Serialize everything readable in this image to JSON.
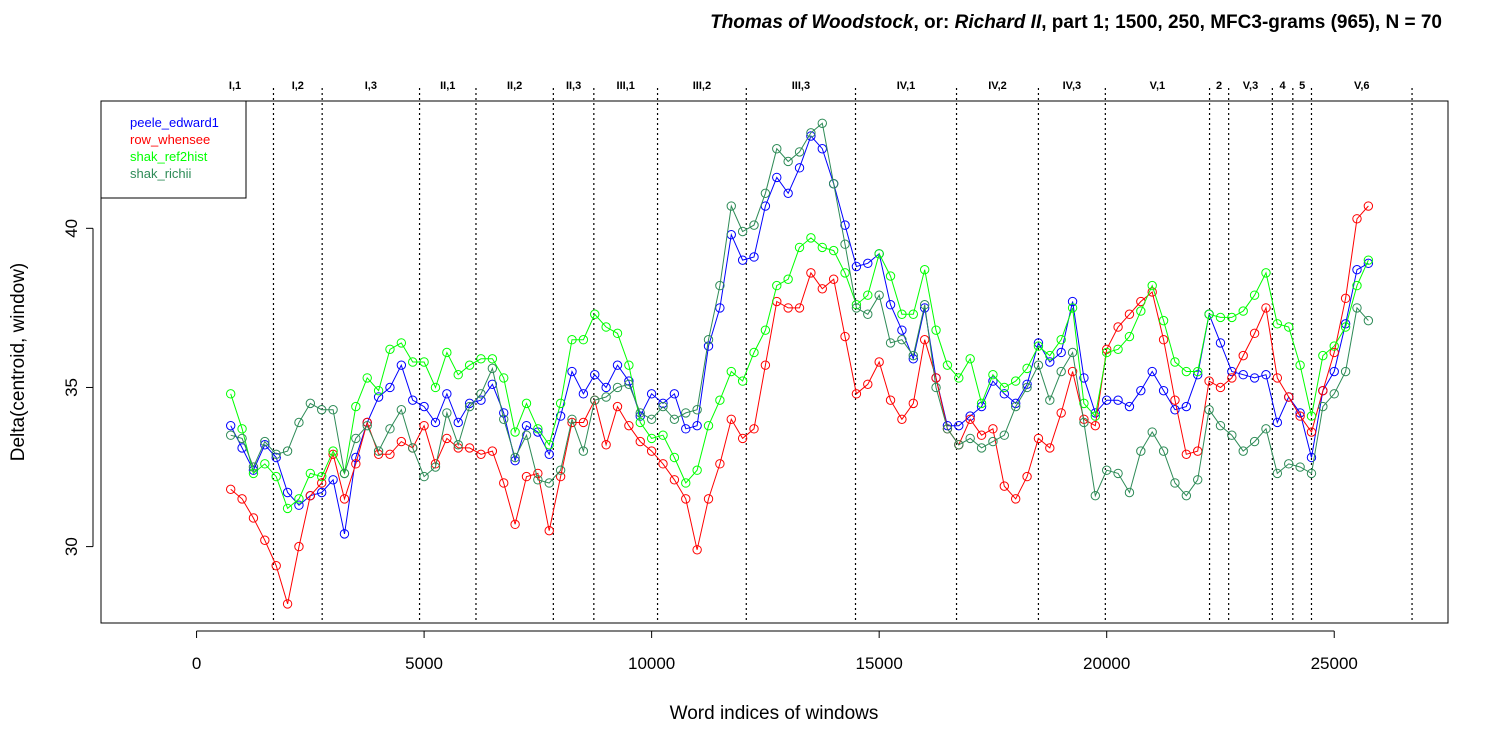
{
  "title": {
    "part1": "Thomas of Woodstock",
    "part2": ", or: ",
    "part3": "Richard II",
    "part4": ", part 1; 1500, 250, MFC3-grams (965), N = 70"
  },
  "chart_data": {
    "type": "line",
    "xlabel": "Word indices of windows",
    "ylabel": "Delta(centroid, window)",
    "xlim": [
      -2100,
      27500
    ],
    "ylim": [
      27.6,
      44.0
    ],
    "xticks": [
      0,
      5000,
      10000,
      15000,
      20000,
      25000
    ],
    "yticks": [
      30,
      35,
      40
    ],
    "legend_position": "top-left",
    "scenes": [
      {
        "label": "I,1",
        "start": 0,
        "end": 1690
      },
      {
        "label": "I,2",
        "start": 1690,
        "end": 2760
      },
      {
        "label": "I,3",
        "start": 2760,
        "end": 4900
      },
      {
        "label": "II,1",
        "start": 4900,
        "end": 6140
      },
      {
        "label": "II,2",
        "start": 6140,
        "end": 7840
      },
      {
        "label": "II,3",
        "start": 7840,
        "end": 8730
      },
      {
        "label": "III,1",
        "start": 8730,
        "end": 10130
      },
      {
        "label": "III,2",
        "start": 10130,
        "end": 12080
      },
      {
        "label": "III,3",
        "start": 12080,
        "end": 14480
      },
      {
        "label": "IV,1",
        "start": 14480,
        "end": 16700
      },
      {
        "label": "IV,2",
        "start": 16700,
        "end": 18500
      },
      {
        "label": "IV,3",
        "start": 18500,
        "end": 19970
      },
      {
        "label": "V,1",
        "start": 19970,
        "end": 22260
      },
      {
        "label": "2",
        "start": 22260,
        "end": 22680
      },
      {
        "label": "V,3",
        "start": 22680,
        "end": 23640
      },
      {
        "label": "4",
        "start": 23640,
        "end": 24090
      },
      {
        "label": "5",
        "start": 24090,
        "end": 24500
      },
      {
        "label": "V,6",
        "start": 24500,
        "end": 26710
      }
    ],
    "x": [
      750,
      1000,
      1250,
      1500,
      1750,
      2000,
      2250,
      2500,
      2750,
      3000,
      3250,
      3500,
      3750,
      4000,
      4250,
      4500,
      4750,
      5000,
      5250,
      5500,
      5750,
      6000,
      6250,
      6500,
      6750,
      7000,
      7250,
      7500,
      7750,
      8000,
      8250,
      8500,
      8750,
      9000,
      9250,
      9500,
      9750,
      10000,
      10250,
      10500,
      10750,
      11000,
      11250,
      11500,
      11750,
      12000,
      12250,
      12500,
      12750,
      13000,
      13250,
      13500,
      13750,
      14000,
      14250,
      14500,
      14750,
      15000,
      15250,
      15500,
      15750,
      16000,
      16250,
      16500,
      16750,
      17000,
      17250,
      17500,
      17750,
      18000,
      18250,
      18500,
      18750,
      19000,
      19250,
      19500,
      19750,
      20000,
      20250,
      20500,
      20750,
      21000,
      21250,
      21500,
      21750,
      22000,
      22250,
      22500,
      22750,
      23000,
      23250,
      23500,
      23750,
      24000,
      24250,
      24500,
      24750,
      25000,
      25250,
      25500,
      25750
    ],
    "series": [
      {
        "name": "peele_edward1",
        "color": "#0000ff",
        "values": [
          33.8,
          33.1,
          32.4,
          33.2,
          32.8,
          31.7,
          31.3,
          31.6,
          31.7,
          32.1,
          30.4,
          32.8,
          33.9,
          34.7,
          35.0,
          35.7,
          34.6,
          34.4,
          33.9,
          34.8,
          33.9,
          34.5,
          34.6,
          35.1,
          34.2,
          32.7,
          33.8,
          33.6,
          32.9,
          34.1,
          35.5,
          34.8,
          35.4,
          35.0,
          35.7,
          35.2,
          34.1,
          34.8,
          34.5,
          34.8,
          33.7,
          33.8,
          36.3,
          37.5,
          39.8,
          39.0,
          39.1,
          40.7,
          41.6,
          41.1,
          41.9,
          42.9,
          42.5,
          41.4,
          40.1,
          38.8,
          38.9,
          39.2,
          37.6,
          36.8,
          35.9,
          37.5,
          35.3,
          33.8,
          33.8,
          34.1,
          34.4,
          35.2,
          34.8,
          34.5,
          35.1,
          36.4,
          35.8,
          36.1,
          37.7,
          35.3,
          34.2,
          34.6,
          34.6,
          34.4,
          34.9,
          35.5,
          34.9,
          34.3,
          34.4,
          35.4,
          37.3,
          36.4,
          35.5,
          35.4,
          35.3,
          35.4,
          33.9,
          34.7,
          34.2,
          32.8,
          34.9,
          35.5,
          37.0,
          38.7,
          38.9
        ]
      },
      {
        "name": "row_whensee",
        "color": "#ff0000",
        "values": [
          31.8,
          31.5,
          30.9,
          30.2,
          29.4,
          28.2,
          30.0,
          31.6,
          32.0,
          32.9,
          31.5,
          32.6,
          33.9,
          32.9,
          32.9,
          33.3,
          33.1,
          33.8,
          32.6,
          33.4,
          33.1,
          33.1,
          32.9,
          33.0,
          32.0,
          30.7,
          32.2,
          32.3,
          30.5,
          32.2,
          33.9,
          33.9,
          34.6,
          33.2,
          34.4,
          33.8,
          33.3,
          33.0,
          32.6,
          32.1,
          31.5,
          29.9,
          31.5,
          32.6,
          34.0,
          33.4,
          33.7,
          35.7,
          37.7,
          37.5,
          37.5,
          38.6,
          38.1,
          38.4,
          36.6,
          34.8,
          35.1,
          35.8,
          34.6,
          34.0,
          34.5,
          36.5,
          35.3,
          33.7,
          33.2,
          34.0,
          33.5,
          33.7,
          31.9,
          31.5,
          32.2,
          33.4,
          33.1,
          34.2,
          35.5,
          34.0,
          33.8,
          36.2,
          36.9,
          37.3,
          37.7,
          38.0,
          36.5,
          34.6,
          32.9,
          33.0,
          35.2,
          35.0,
          35.3,
          36.0,
          36.7,
          37.5,
          35.3,
          34.7,
          34.1,
          33.6,
          34.9,
          36.1,
          37.8,
          40.3,
          40.7
        ]
      },
      {
        "name": "shak_ref2hist",
        "color": "#00ff00",
        "values": [
          34.8,
          33.7,
          32.3,
          32.6,
          32.2,
          31.2,
          31.5,
          32.3,
          32.2,
          33.0,
          32.3,
          34.4,
          35.3,
          34.9,
          36.2,
          36.4,
          35.8,
          35.8,
          35.0,
          36.1,
          35.4,
          35.7,
          35.9,
          35.9,
          35.3,
          33.6,
          34.5,
          33.7,
          33.2,
          34.5,
          36.5,
          36.5,
          37.3,
          36.9,
          36.7,
          35.7,
          33.9,
          33.4,
          33.5,
          32.8,
          32.0,
          32.4,
          33.8,
          34.6,
          35.5,
          35.2,
          36.1,
          36.8,
          38.2,
          38.4,
          39.4,
          39.7,
          39.4,
          39.3,
          38.6,
          37.6,
          37.9,
          39.2,
          38.5,
          37.3,
          37.3,
          38.7,
          36.8,
          35.7,
          35.3,
          35.9,
          34.5,
          35.4,
          35.0,
          35.2,
          35.6,
          36.3,
          36.0,
          36.5,
          37.5,
          34.5,
          34.1,
          36.1,
          36.2,
          36.6,
          37.4,
          38.2,
          37.1,
          35.8,
          35.5,
          35.5,
          37.3,
          37.2,
          37.2,
          37.4,
          37.9,
          38.6,
          37.0,
          36.9,
          35.7,
          34.1,
          36.0,
          36.3,
          36.9,
          38.2,
          39.0
        ]
      },
      {
        "name": "shak_richii",
        "color": "#2e8b57",
        "values": [
          33.5,
          33.4,
          32.5,
          33.3,
          32.9,
          33.0,
          33.9,
          34.5,
          34.3,
          34.3,
          32.3,
          33.4,
          33.8,
          33.0,
          33.7,
          34.3,
          33.1,
          32.2,
          32.5,
          34.2,
          33.2,
          34.4,
          34.8,
          35.6,
          34.0,
          32.8,
          33.5,
          32.1,
          32.0,
          32.4,
          34.0,
          33.0,
          34.6,
          34.7,
          35.0,
          35.1,
          34.2,
          34.0,
          34.4,
          34.0,
          34.2,
          34.3,
          36.5,
          38.2,
          40.7,
          39.9,
          40.1,
          41.1,
          42.5,
          42.1,
          42.4,
          43.0,
          43.3,
          41.4,
          39.5,
          37.5,
          37.3,
          37.9,
          36.4,
          36.5,
          36.0,
          37.6,
          35.0,
          33.7,
          33.2,
          33.4,
          33.1,
          33.3,
          33.5,
          34.4,
          35.0,
          35.7,
          34.6,
          35.5,
          36.1,
          33.9,
          31.6,
          32.4,
          32.3,
          31.7,
          33.0,
          33.6,
          33.0,
          32.0,
          31.6,
          32.1,
          34.3,
          33.8,
          33.5,
          33.0,
          33.3,
          33.7,
          32.3,
          32.6,
          32.5,
          32.3,
          34.4,
          34.8,
          35.5,
          37.5,
          37.1
        ]
      }
    ]
  }
}
